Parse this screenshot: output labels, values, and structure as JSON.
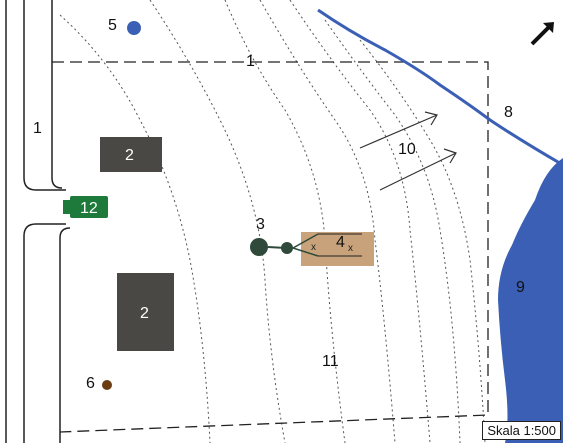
{
  "map": {
    "scale_label": "Skala 1:500",
    "north_arrow_icon": "north-arrow-icon",
    "labels": {
      "road_left": "1",
      "property_line_top": "1",
      "building_small": "2",
      "building_large": "2",
      "well": "3",
      "septic_tank": "4",
      "blue_marker": "5",
      "brown_marker": "6",
      "stream": "8",
      "lake": "9",
      "slope": "10",
      "terrain": "11",
      "access_sign": "12"
    },
    "colors": {
      "water": "#3a5fb5",
      "building": "#4a4844",
      "septic": "#c8a27a",
      "well": "#2f4a3a",
      "sign": "#1e7a3a",
      "brown_marker": "#6b3d10",
      "contour": "#555555"
    }
  }
}
